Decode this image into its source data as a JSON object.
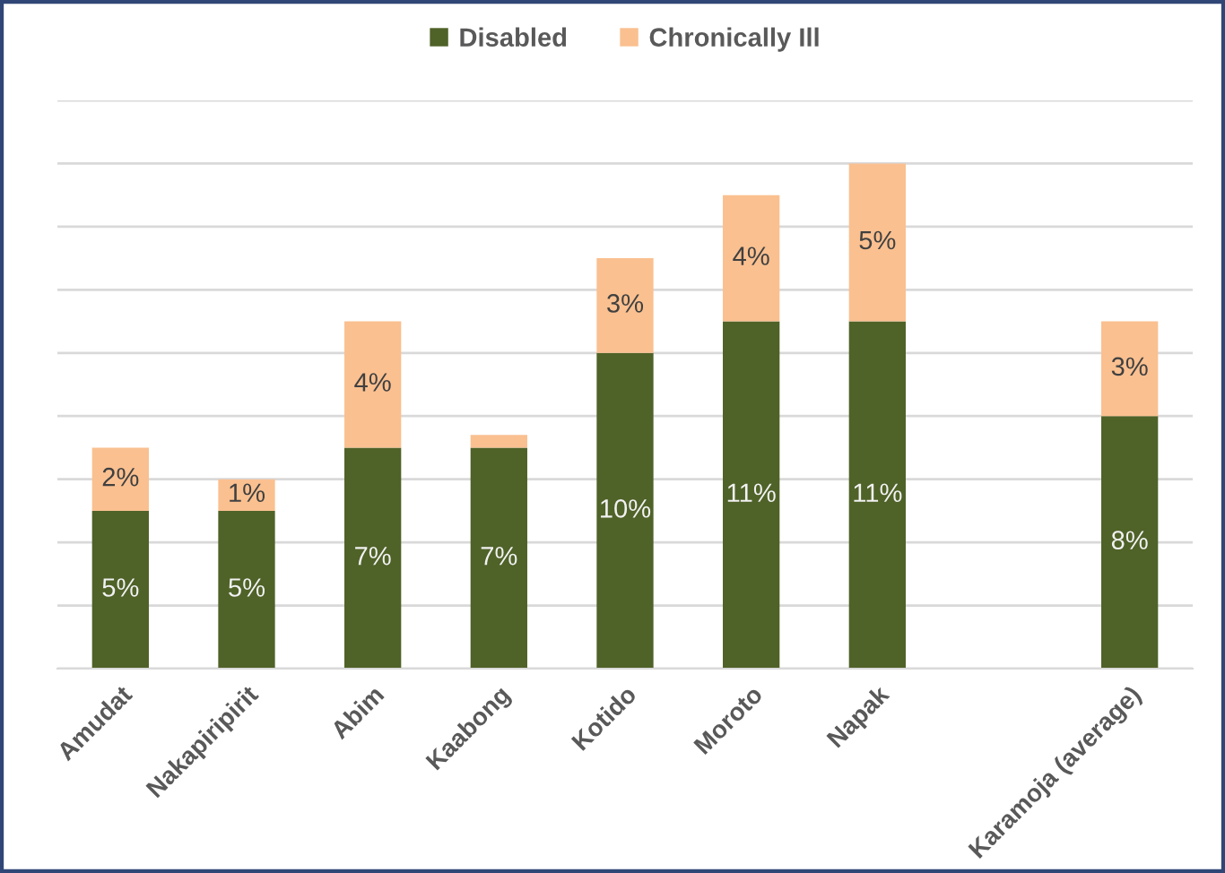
{
  "chart_data": {
    "type": "bar",
    "stacked": true,
    "categories": [
      "Amudat",
      "Nakapiripirit",
      "Abim",
      "Kaabong",
      "Kotido",
      "Moroto",
      "Napak",
      null,
      "Karamoja (average)"
    ],
    "series": [
      {
        "name": "Disabled",
        "color": "#4f6228",
        "values": [
          5,
          5,
          7,
          7,
          10,
          11,
          11,
          null,
          8
        ],
        "value_labels": [
          "5%",
          "5%",
          "7%",
          "7%",
          "10%",
          "11%",
          "11%",
          null,
          "8%"
        ]
      },
      {
        "name": "Chronically Ill",
        "color": "#fac090",
        "values": [
          2,
          1,
          4,
          0.4,
          3,
          4,
          5,
          null,
          3
        ],
        "value_labels": [
          "2%",
          "1%",
          "4%",
          null,
          "3%",
          "4%",
          "5%",
          null,
          "3%"
        ]
      }
    ],
    "ylim": [
      0,
      18
    ],
    "yticks": [
      {
        "value": 0,
        "label": null
      },
      {
        "value": 2,
        "label": null
      },
      {
        "value": 4,
        "label": null
      },
      {
        "value": 6,
        "label": null
      },
      {
        "value": 8,
        "label": null
      },
      {
        "value": 10,
        "label": null
      },
      {
        "value": 12,
        "label": null
      },
      {
        "value": 14,
        "label": null
      },
      {
        "value": 16,
        "label": null
      },
      {
        "value": 18,
        "label": null
      }
    ],
    "grid": "y",
    "legend": "top",
    "tick_labels": "x"
  }
}
